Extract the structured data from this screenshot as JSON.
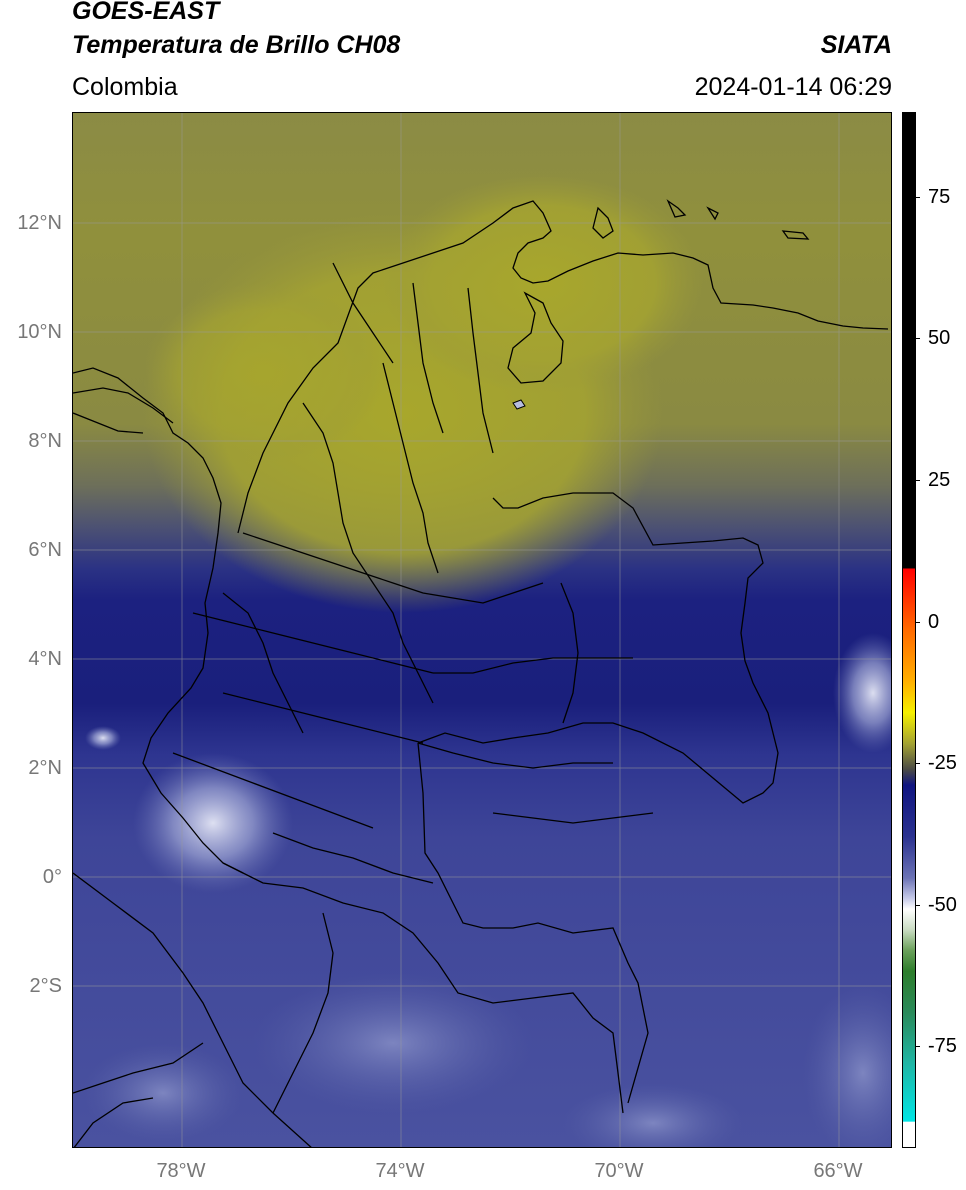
{
  "header": {
    "satellite": "GOES-EAST",
    "product": "Temperatura de Brillo CH08",
    "region": "Colombia",
    "source": "SIATA",
    "datetime": "2024-01-14 06:29"
  },
  "map": {
    "lat_labels": [
      "12°N",
      "10°N",
      "8°N",
      "6°N",
      "4°N",
      "2°N",
      "0°",
      "2°S"
    ],
    "lon_labels": [
      "78°W",
      "74°W",
      "70°W",
      "66°W"
    ],
    "extent": {
      "lon_min": -80,
      "lon_max": -65,
      "lat_min": -5,
      "lat_max": 14
    },
    "colors": {
      "warm_olive": "#8f8f3c",
      "bright_olive": "#a6a531",
      "dark_navy": "#1b1f7a",
      "navy": "#1f2a8a",
      "mid_blue": "#3f4699",
      "light_blue": "#5a63a8",
      "pale": "#b7bde0"
    }
  },
  "colorbar": {
    "labels": [
      "75",
      "50",
      "25",
      "0",
      "-25",
      "-50",
      "-75"
    ],
    "values": [
      75,
      50,
      25,
      0,
      -25,
      -50,
      -75
    ],
    "range": [
      -93,
      90
    ]
  }
}
